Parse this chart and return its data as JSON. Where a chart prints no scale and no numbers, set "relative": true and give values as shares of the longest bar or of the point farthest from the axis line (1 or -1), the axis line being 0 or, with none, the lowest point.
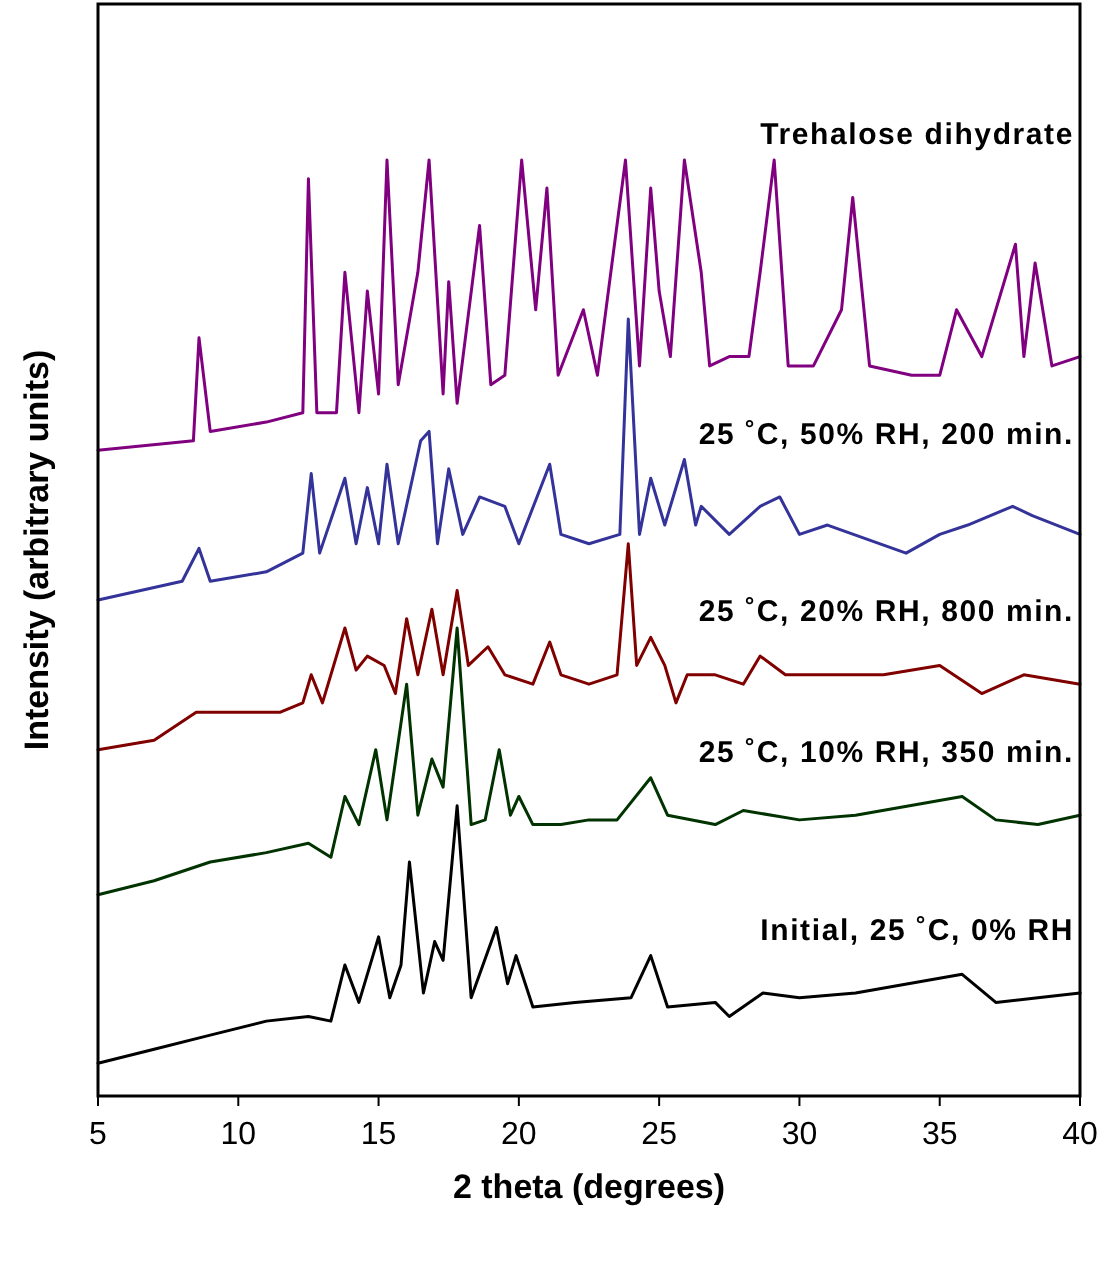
{
  "chart_data": {
    "type": "line",
    "relative": true,
    "xlabel": "2 theta (degrees)",
    "ylabel": "Intensity (arbitrary units)",
    "xlim": [
      5,
      40
    ],
    "xticks": [
      5,
      10,
      15,
      20,
      25,
      30,
      35,
      40
    ],
    "tick_labels": "x",
    "series": [
      {
        "name": "Trehalose dihydrate",
        "color": "#800080",
        "x": [
          5,
          8.4,
          8.6,
          9,
          11,
          12.3,
          12.5,
          12.8,
          13.5,
          13.8,
          14.3,
          14.6,
          15,
          15.3,
          15.7,
          16.4,
          16.8,
          17.3,
          17.5,
          17.8,
          18.6,
          19,
          19.5,
          20.1,
          20.6,
          21,
          21.4,
          22.3,
          22.8,
          23.8,
          24.3,
          24.7,
          25,
          25.4,
          25.9,
          26.5,
          26.8,
          27.5,
          28.2,
          28.6,
          29.1,
          29.6,
          30.5,
          31.5,
          31.9,
          32.5,
          34,
          35,
          35.6,
          36.5,
          37.7,
          38,
          38.4,
          39,
          40
        ],
        "values": [
          0.69,
          0.7,
          0.81,
          0.71,
          0.72,
          0.73,
          0.98,
          0.73,
          0.73,
          0.88,
          0.73,
          0.86,
          0.75,
          1.0,
          0.76,
          0.88,
          1.0,
          0.75,
          0.87,
          0.74,
          0.93,
          0.76,
          0.77,
          1.0,
          0.84,
          0.97,
          0.77,
          0.84,
          0.77,
          1.0,
          0.78,
          0.97,
          0.86,
          0.79,
          1.0,
          0.88,
          0.78,
          0.79,
          0.79,
          0.88,
          1.0,
          0.78,
          0.78,
          0.84,
          0.96,
          0.78,
          0.77,
          0.77,
          0.84,
          0.79,
          0.91,
          0.79,
          0.89,
          0.78,
          0.79
        ]
      },
      {
        "name": "25 ˚C, 50% RH, 200 min.",
        "color": "#333399",
        "x": [
          5,
          8,
          8.6,
          9,
          11,
          12.3,
          12.6,
          12.9,
          13.8,
          14.2,
          14.6,
          15,
          15.3,
          15.7,
          16.5,
          16.8,
          17.1,
          17.5,
          18,
          18.6,
          19.5,
          20,
          21.1,
          21.5,
          22.5,
          23.6,
          23.9,
          24.3,
          24.7,
          25.2,
          25.9,
          26.3,
          26.5,
          27.5,
          28.6,
          29.3,
          30,
          31,
          33.8,
          35,
          36,
          37.6,
          38.3,
          40
        ],
        "values": [
          0.53,
          0.55,
          0.585,
          0.55,
          0.56,
          0.58,
          0.665,
          0.58,
          0.66,
          0.59,
          0.65,
          0.59,
          0.675,
          0.59,
          0.7,
          0.71,
          0.59,
          0.67,
          0.6,
          0.64,
          0.63,
          0.59,
          0.675,
          0.6,
          0.59,
          0.6,
          0.83,
          0.6,
          0.66,
          0.61,
          0.68,
          0.61,
          0.63,
          0.6,
          0.63,
          0.64,
          0.6,
          0.61,
          0.58,
          0.6,
          0.61,
          0.63,
          0.62,
          0.6
        ]
      },
      {
        "name": "25 ˚C, 20% RH, 800 min.",
        "color": "#800000",
        "x": [
          5,
          7,
          8.5,
          10,
          11.5,
          12.3,
          12.6,
          13,
          13.8,
          14.2,
          14.6,
          15.2,
          15.6,
          16,
          16.4,
          16.9,
          17.3,
          17.8,
          18.2,
          18.9,
          19.5,
          20.5,
          21.1,
          21.5,
          22.5,
          23.5,
          23.9,
          24.2,
          24.7,
          25.2,
          25.6,
          26,
          27,
          28,
          28.6,
          29.5,
          31,
          33,
          35,
          36.5,
          38,
          40
        ],
        "values": [
          0.37,
          0.38,
          0.41,
          0.41,
          0.41,
          0.42,
          0.45,
          0.42,
          0.5,
          0.455,
          0.47,
          0.46,
          0.43,
          0.51,
          0.45,
          0.52,
          0.45,
          0.54,
          0.46,
          0.48,
          0.45,
          0.44,
          0.485,
          0.45,
          0.44,
          0.45,
          0.59,
          0.46,
          0.49,
          0.46,
          0.42,
          0.45,
          0.45,
          0.44,
          0.47,
          0.45,
          0.45,
          0.45,
          0.46,
          0.43,
          0.45,
          0.44
        ]
      },
      {
        "name": "25 ˚C, 10% RH, 350 min.",
        "color": "#003300",
        "x": [
          5,
          7,
          9,
          11,
          12.5,
          13.3,
          13.8,
          14.3,
          14.9,
          15.3,
          16,
          16.4,
          16.9,
          17.3,
          17.8,
          18.3,
          18.8,
          19.3,
          19.7,
          20,
          20.5,
          21.5,
          22.5,
          23.5,
          24.7,
          25.3,
          27,
          28,
          30,
          32,
          35.8,
          37,
          38.5,
          40
        ],
        "values": [
          0.215,
          0.23,
          0.25,
          0.26,
          0.27,
          0.255,
          0.32,
          0.29,
          0.37,
          0.295,
          0.44,
          0.3,
          0.36,
          0.33,
          0.5,
          0.29,
          0.295,
          0.37,
          0.3,
          0.32,
          0.29,
          0.29,
          0.295,
          0.295,
          0.34,
          0.3,
          0.29,
          0.305,
          0.295,
          0.3,
          0.32,
          0.295,
          0.29,
          0.3
        ]
      },
      {
        "name": "Initial, 25 ˚C, 0% RH",
        "color": "#000000",
        "x": [
          5,
          7,
          9,
          11,
          12.5,
          13.3,
          13.8,
          14.3,
          15,
          15.4,
          15.8,
          16.1,
          16.6,
          17,
          17.3,
          17.8,
          18.3,
          19.2,
          19.6,
          19.9,
          20.5,
          22,
          24,
          24.7,
          25.3,
          27,
          27.5,
          28.7,
          30,
          32,
          35.8,
          37,
          38.5,
          40
        ],
        "values": [
          0.035,
          0.05,
          0.065,
          0.08,
          0.085,
          0.08,
          0.14,
          0.1,
          0.17,
          0.105,
          0.14,
          0.25,
          0.11,
          0.165,
          0.145,
          0.31,
          0.105,
          0.18,
          0.12,
          0.15,
          0.095,
          0.1,
          0.105,
          0.15,
          0.095,
          0.1,
          0.085,
          0.11,
          0.105,
          0.11,
          0.13,
          0.1,
          0.105,
          0.11
        ]
      }
    ]
  }
}
